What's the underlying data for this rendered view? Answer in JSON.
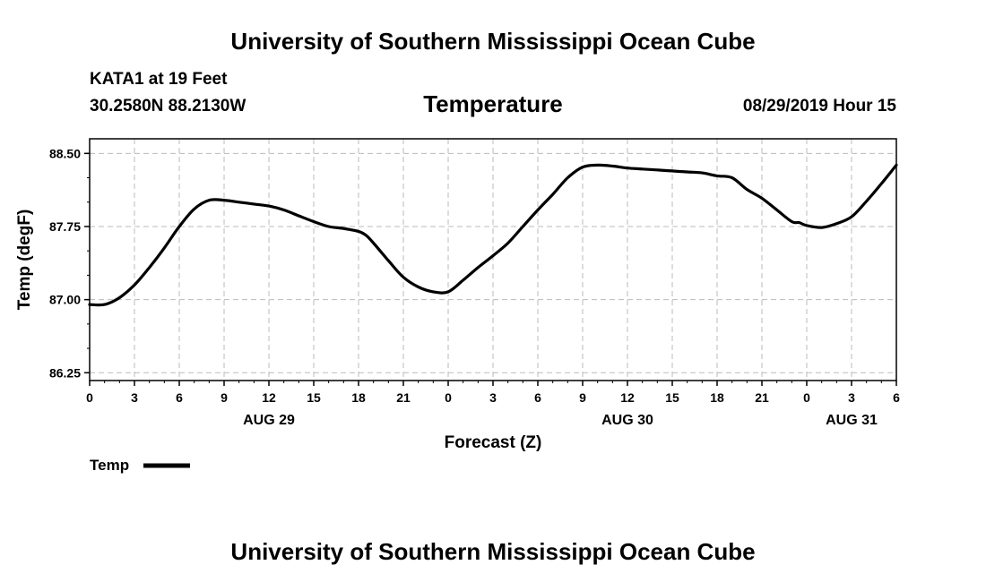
{
  "header": {
    "title": "University of Southern Mississippi Ocean Cube",
    "station": "KATA1 at 19 Feet",
    "coords": "30.2580N 88.2130W",
    "variable": "Temperature",
    "datetime": "08/29/2019 Hour 15"
  },
  "footer": {
    "title": "University of Southern Mississippi Ocean Cube"
  },
  "colors": {
    "line": "#000000",
    "grid": "#bbbbbb",
    "axis": "#000000"
  },
  "chart_data": {
    "type": "line",
    "title": "Temperature",
    "xlabel": "Forecast (Z)",
    "ylabel": "Temp (degF)",
    "xlim": [
      0,
      54
    ],
    "ylim": [
      86.17,
      88.65
    ],
    "yticks": [
      86.25,
      87.0,
      87.75,
      88.5
    ],
    "ytick_labels": [
      "86.25",
      "87.00",
      "87.75",
      "88.50"
    ],
    "xticks": [
      0,
      3,
      6,
      9,
      12,
      15,
      18,
      21,
      24,
      27,
      30,
      33,
      36,
      39,
      42,
      45,
      48,
      51,
      54
    ],
    "xtick_labels": [
      "0",
      "3",
      "6",
      "9",
      "12",
      "15",
      "18",
      "21",
      "0",
      "3",
      "6",
      "9",
      "12",
      "15",
      "18",
      "21",
      "0",
      "3",
      "6"
    ],
    "date_labels": [
      {
        "x": 12,
        "label": "AUG 29"
      },
      {
        "x": 36,
        "label": "AUG 30"
      },
      {
        "x": 51,
        "label": "AUG 31"
      }
    ],
    "grid": true,
    "legend_position": "bottom-left",
    "series": [
      {
        "name": "Temp",
        "x": [
          0,
          1,
          2,
          3,
          4,
          5,
          6,
          7,
          8,
          9,
          10,
          11,
          12,
          13,
          14,
          15,
          16,
          17,
          18,
          18.5,
          19,
          20,
          21,
          22,
          23,
          24,
          25,
          26,
          27,
          28,
          29,
          30,
          31,
          32,
          33,
          34,
          35,
          36,
          37,
          38,
          39,
          40,
          41,
          42,
          43,
          44,
          45,
          46,
          47,
          47.5,
          48,
          49,
          50,
          51,
          52,
          53,
          54
        ],
        "values": [
          86.95,
          86.95,
          87.02,
          87.15,
          87.33,
          87.53,
          87.75,
          87.93,
          88.02,
          88.02,
          88.0,
          87.98,
          87.96,
          87.92,
          87.86,
          87.8,
          87.75,
          87.73,
          87.7,
          87.66,
          87.58,
          87.4,
          87.23,
          87.13,
          87.08,
          87.08,
          87.2,
          87.33,
          87.45,
          87.58,
          87.75,
          87.92,
          88.08,
          88.25,
          88.36,
          88.38,
          88.37,
          88.35,
          88.34,
          88.33,
          88.32,
          88.31,
          88.3,
          88.27,
          88.25,
          88.13,
          88.04,
          87.92,
          87.8,
          87.79,
          87.76,
          87.74,
          87.78,
          87.85,
          88.01,
          88.19,
          88.38
        ]
      }
    ]
  }
}
